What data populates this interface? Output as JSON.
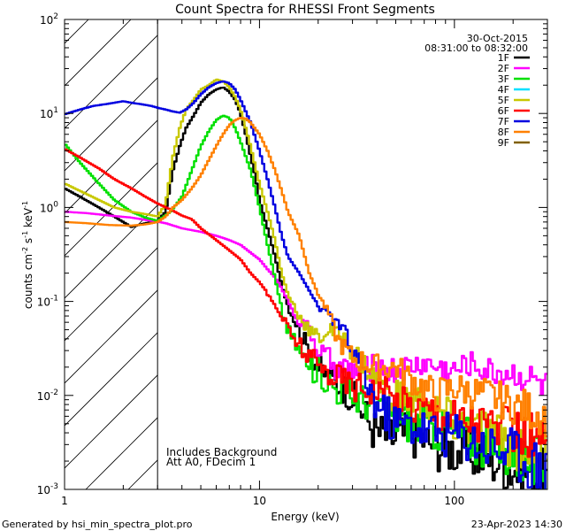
{
  "chart_data": {
    "type": "line",
    "title": "Count Spectra for RHESSI Front Segments",
    "xlabel": "Energy (keV)",
    "ylabel_base": "counts cm",
    "ylabel_sup1": "-2",
    "ylabel_mid": " s",
    "ylabel_sup2": "-1",
    "ylabel_end": " keV",
    "ylabel_sup3": "-1",
    "xscale": "log",
    "yscale": "log",
    "xlim": [
      1,
      300
    ],
    "ylim": [
      0.001,
      100
    ],
    "date": "30-Oct-2015",
    "time_range": "08:31:00 to 08:32:00",
    "annotation_1": "Includes Background",
    "annotation_2": "Att A0, FDecim 1",
    "hatched_region": {
      "x_from": 1,
      "x_to": 3
    },
    "x_tick_labels": [
      {
        "value": 1,
        "label": "1"
      },
      {
        "value": 10,
        "label": "10"
      },
      {
        "value": 100,
        "label": "100"
      }
    ],
    "y_tick_labels": [
      {
        "exp": -3,
        "base": "10",
        "sup": "-3"
      },
      {
        "exp": -2,
        "base": "10",
        "sup": "-2"
      },
      {
        "exp": -1,
        "base": "10",
        "sup": "-1"
      },
      {
        "exp": 0,
        "base": "10",
        "sup": "0"
      },
      {
        "exp": 1,
        "base": "10",
        "sup": "1"
      },
      {
        "exp": 2,
        "base": "10",
        "sup": "2"
      }
    ],
    "legend": [
      {
        "name": "1F",
        "color": "#000000"
      },
      {
        "name": "2F",
        "color": "#ff00ff"
      },
      {
        "name": "3F",
        "color": "#00e000"
      },
      {
        "name": "4F",
        "color": "#00e0ff"
      },
      {
        "name": "5F",
        "color": "#c8c800"
      },
      {
        "name": "6F",
        "color": "#ff0000"
      },
      {
        "name": "7F",
        "color": "#0000e0"
      },
      {
        "name": "8F",
        "color": "#ff8000"
      },
      {
        "name": "9F",
        "color": "#806000"
      }
    ],
    "series": [
      {
        "name": "1F",
        "color": "#000000",
        "points": [
          [
            1.0,
            1.6
          ],
          [
            1.2,
            1.3
          ],
          [
            1.5,
            1.0
          ],
          [
            1.8,
            0.8
          ],
          [
            2.2,
            0.62
          ],
          [
            2.6,
            0.68
          ],
          [
            3.0,
            0.72
          ],
          [
            3.3,
            0.9
          ],
          [
            3.6,
            2.5
          ],
          [
            3.9,
            4.5
          ],
          [
            4.2,
            7.0
          ],
          [
            4.6,
            9.5
          ],
          [
            5.0,
            13
          ],
          [
            5.5,
            16
          ],
          [
            6.0,
            18
          ],
          [
            6.5,
            19
          ],
          [
            7.0,
            17
          ],
          [
            7.5,
            14
          ],
          [
            8.0,
            10
          ],
          [
            8.5,
            6
          ],
          [
            9.0,
            3.5
          ],
          [
            9.5,
            2.2
          ],
          [
            10.0,
            1.2
          ],
          [
            11.0,
            0.6
          ],
          [
            12.0,
            0.3
          ],
          [
            13.0,
            0.15
          ],
          [
            14.0,
            0.09
          ],
          [
            16.0,
            0.05
          ],
          [
            18.0,
            0.03
          ],
          [
            20.0,
            0.02
          ],
          [
            23.0,
            0.015
          ],
          [
            27.0,
            0.012
          ],
          [
            30.0,
            0.01
          ],
          [
            35.0,
            0.006
          ],
          [
            40.0,
            0.004
          ],
          [
            50.0,
            0.0035
          ],
          [
            60.0,
            0.004
          ],
          [
            80.0,
            0.003
          ],
          [
            100.0,
            0.0027
          ],
          [
            150.0,
            0.0022
          ],
          [
            200.0,
            0.0017
          ],
          [
            250.0,
            0.0015
          ],
          [
            300.0,
            0.0012
          ]
        ]
      },
      {
        "name": "2F",
        "color": "#ff00ff",
        "points": [
          [
            1.0,
            0.9
          ],
          [
            1.3,
            0.87
          ],
          [
            1.7,
            0.82
          ],
          [
            2.2,
            0.78
          ],
          [
            2.8,
            0.72
          ],
          [
            3.3,
            0.68
          ],
          [
            4.0,
            0.6
          ],
          [
            5.0,
            0.55
          ],
          [
            6.0,
            0.5
          ],
          [
            7.0,
            0.45
          ],
          [
            8.0,
            0.4
          ],
          [
            9.0,
            0.33
          ],
          [
            10.0,
            0.28
          ],
          [
            11.0,
            0.22
          ],
          [
            12.0,
            0.18
          ],
          [
            13.0,
            0.14
          ],
          [
            14.0,
            0.1
          ],
          [
            15.0,
            0.08
          ],
          [
            16.0,
            0.06
          ],
          [
            18.0,
            0.05
          ],
          [
            20.0,
            0.03
          ],
          [
            25.0,
            0.02
          ],
          [
            30.0,
            0.018
          ],
          [
            40.0,
            0.02
          ],
          [
            50.0,
            0.018
          ],
          [
            60.0,
            0.02
          ],
          [
            70.0,
            0.022
          ],
          [
            80.0,
            0.02
          ],
          [
            100.0,
            0.018
          ],
          [
            120.0,
            0.022
          ],
          [
            150.0,
            0.018
          ],
          [
            200.0,
            0.017
          ],
          [
            250.0,
            0.015
          ],
          [
            300.0,
            0.012
          ]
        ]
      },
      {
        "name": "3F",
        "color": "#00e000",
        "points": [
          [
            1.0,
            4.8
          ],
          [
            1.2,
            3.0
          ],
          [
            1.5,
            1.8
          ],
          [
            1.8,
            1.2
          ],
          [
            2.2,
            0.9
          ],
          [
            2.6,
            0.78
          ],
          [
            3.0,
            0.72
          ],
          [
            3.5,
            0.9
          ],
          [
            4.0,
            1.3
          ],
          [
            4.5,
            2.5
          ],
          [
            5.0,
            4.5
          ],
          [
            5.5,
            6.5
          ],
          [
            6.0,
            8.5
          ],
          [
            6.5,
            9.5
          ],
          [
            7.0,
            9.0
          ],
          [
            7.5,
            7.0
          ],
          [
            8.0,
            5.0
          ],
          [
            9.0,
            2.5
          ],
          [
            10.0,
            1.0
          ],
          [
            11.0,
            0.4
          ],
          [
            12.0,
            0.18
          ],
          [
            13.0,
            0.08
          ],
          [
            14.0,
            0.05
          ],
          [
            16.0,
            0.03
          ],
          [
            18.0,
            0.02
          ],
          [
            20.0,
            0.018
          ],
          [
            25.0,
            0.012
          ],
          [
            30.0,
            0.01
          ],
          [
            40.0,
            0.008
          ],
          [
            50.0,
            0.006
          ],
          [
            70.0,
            0.005
          ],
          [
            100.0,
            0.004
          ],
          [
            150.0,
            0.003
          ],
          [
            200.0,
            0.0025
          ],
          [
            250.0,
            0.002
          ],
          [
            300.0,
            0.0016
          ]
        ]
      },
      {
        "name": "5F",
        "color": "#c8c800",
        "points": [
          [
            1.0,
            1.8
          ],
          [
            1.2,
            1.5
          ],
          [
            1.5,
            1.2
          ],
          [
            1.8,
            1.0
          ],
          [
            2.2,
            0.9
          ],
          [
            2.6,
            0.85
          ],
          [
            3.0,
            0.8
          ],
          [
            3.3,
            1.1
          ],
          [
            3.6,
            3.5
          ],
          [
            3.9,
            7.0
          ],
          [
            4.2,
            11
          ],
          [
            4.6,
            14
          ],
          [
            5.0,
            18
          ],
          [
            5.5,
            20
          ],
          [
            6.0,
            23
          ],
          [
            6.5,
            22
          ],
          [
            7.0,
            19
          ],
          [
            7.5,
            15
          ],
          [
            8.0,
            11
          ],
          [
            8.5,
            7
          ],
          [
            9.0,
            4.5
          ],
          [
            9.5,
            2.8
          ],
          [
            10.0,
            1.8
          ],
          [
            11.0,
            0.9
          ],
          [
            12.0,
            0.45
          ],
          [
            13.0,
            0.2
          ],
          [
            14.0,
            0.12
          ],
          [
            16.0,
            0.07
          ],
          [
            18.0,
            0.05
          ],
          [
            20.0,
            0.04
          ],
          [
            23.0,
            0.05
          ],
          [
            27.0,
            0.04
          ],
          [
            30.0,
            0.03
          ],
          [
            35.0,
            0.02
          ],
          [
            40.0,
            0.014
          ],
          [
            50.0,
            0.01
          ],
          [
            70.0,
            0.008
          ],
          [
            100.0,
            0.005
          ],
          [
            150.0,
            0.004
          ],
          [
            200.0,
            0.003
          ],
          [
            300.0,
            0.0025
          ]
        ]
      },
      {
        "name": "6F",
        "color": "#ff0000",
        "points": [
          [
            1.0,
            4.2
          ],
          [
            1.2,
            3.4
          ],
          [
            1.5,
            2.6
          ],
          [
            1.8,
            2.0
          ],
          [
            2.2,
            1.6
          ],
          [
            2.6,
            1.3
          ],
          [
            3.0,
            1.1
          ],
          [
            3.5,
            0.95
          ],
          [
            4.0,
            0.82
          ],
          [
            4.5,
            0.75
          ],
          [
            5.0,
            0.6
          ],
          [
            6.0,
            0.45
          ],
          [
            7.0,
            0.35
          ],
          [
            8.0,
            0.28
          ],
          [
            9.0,
            0.2
          ],
          [
            10.0,
            0.16
          ],
          [
            11.0,
            0.12
          ],
          [
            12.0,
            0.09
          ],
          [
            13.0,
            0.07
          ],
          [
            14.0,
            0.05
          ],
          [
            15.0,
            0.04
          ],
          [
            16.0,
            0.035
          ],
          [
            18.0,
            0.025
          ],
          [
            20.0,
            0.02
          ],
          [
            25.0,
            0.016
          ],
          [
            30.0,
            0.013
          ],
          [
            40.0,
            0.012
          ],
          [
            50.0,
            0.009
          ],
          [
            60.0,
            0.008
          ],
          [
            80.0,
            0.007
          ],
          [
            100.0,
            0.006
          ],
          [
            150.0,
            0.005
          ],
          [
            200.0,
            0.004
          ],
          [
            250.0,
            0.0035
          ],
          [
            300.0,
            0.003
          ]
        ]
      },
      {
        "name": "7F",
        "color": "#0000e0",
        "points": [
          [
            1.0,
            9.8
          ],
          [
            1.2,
            11
          ],
          [
            1.4,
            12
          ],
          [
            1.6,
            12.5
          ],
          [
            1.8,
            13
          ],
          [
            2.0,
            13.5
          ],
          [
            2.2,
            13
          ],
          [
            2.5,
            12.5
          ],
          [
            2.8,
            12
          ],
          [
            3.0,
            11.5
          ],
          [
            3.3,
            11
          ],
          [
            3.6,
            10.5
          ],
          [
            3.9,
            10.2
          ],
          [
            4.2,
            11
          ],
          [
            4.6,
            13
          ],
          [
            5.0,
            16
          ],
          [
            5.5,
            19
          ],
          [
            6.0,
            21
          ],
          [
            6.5,
            22
          ],
          [
            7.0,
            21
          ],
          [
            7.5,
            18
          ],
          [
            8.0,
            14
          ],
          [
            9.0,
            8
          ],
          [
            10.0,
            4
          ],
          [
            11.0,
            2
          ],
          [
            12.0,
            1.0
          ],
          [
            13.0,
            0.5
          ],
          [
            14.0,
            0.3
          ],
          [
            16.0,
            0.2
          ],
          [
            18.0,
            0.13
          ],
          [
            20.0,
            0.09
          ],
          [
            23.0,
            0.07
          ],
          [
            27.0,
            0.05
          ],
          [
            30.0,
            0.03
          ],
          [
            35.0,
            0.015
          ],
          [
            40.0,
            0.008
          ],
          [
            50.0,
            0.005
          ],
          [
            60.0,
            0.005
          ],
          [
            80.0,
            0.004
          ],
          [
            100.0,
            0.004
          ],
          [
            150.0,
            0.003
          ],
          [
            200.0,
            0.0025
          ],
          [
            250.0,
            0.002
          ],
          [
            300.0,
            0.0015
          ]
        ]
      },
      {
        "name": "8F",
        "color": "#ff8000",
        "points": [
          [
            1.0,
            0.7
          ],
          [
            1.3,
            0.68
          ],
          [
            1.7,
            0.65
          ],
          [
            2.2,
            0.64
          ],
          [
            2.6,
            0.66
          ],
          [
            3.0,
            0.7
          ],
          [
            3.3,
            0.8
          ],
          [
            3.6,
            1.0
          ],
          [
            4.0,
            1.2
          ],
          [
            4.5,
            1.6
          ],
          [
            5.0,
            2.2
          ],
          [
            5.5,
            3.2
          ],
          [
            6.0,
            4.5
          ],
          [
            6.5,
            6.0
          ],
          [
            7.0,
            7.5
          ],
          [
            7.5,
            8.5
          ],
          [
            8.0,
            9.0
          ],
          [
            8.5,
            8.8
          ],
          [
            9.0,
            8.0
          ],
          [
            10.0,
            6.0
          ],
          [
            11.0,
            4.0
          ],
          [
            12.0,
            2.5
          ],
          [
            13.0,
            1.5
          ],
          [
            14.0,
            0.9
          ],
          [
            16.0,
            0.5
          ],
          [
            18.0,
            0.2
          ],
          [
            20.0,
            0.12
          ],
          [
            23.0,
            0.07
          ],
          [
            25.0,
            0.04
          ],
          [
            30.0,
            0.025
          ],
          [
            40.0,
            0.02
          ],
          [
            50.0,
            0.02
          ],
          [
            60.0,
            0.015
          ],
          [
            70.0,
            0.012
          ],
          [
            80.0,
            0.01
          ],
          [
            100.0,
            0.012
          ],
          [
            150.0,
            0.01
          ],
          [
            200.0,
            0.008
          ],
          [
            300.0,
            0.006
          ]
        ]
      }
    ]
  },
  "footer": {
    "generated_by": "Generated by hsi_min_spectra_plot.pro",
    "timestamp": "23-Apr-2023 14:30"
  }
}
